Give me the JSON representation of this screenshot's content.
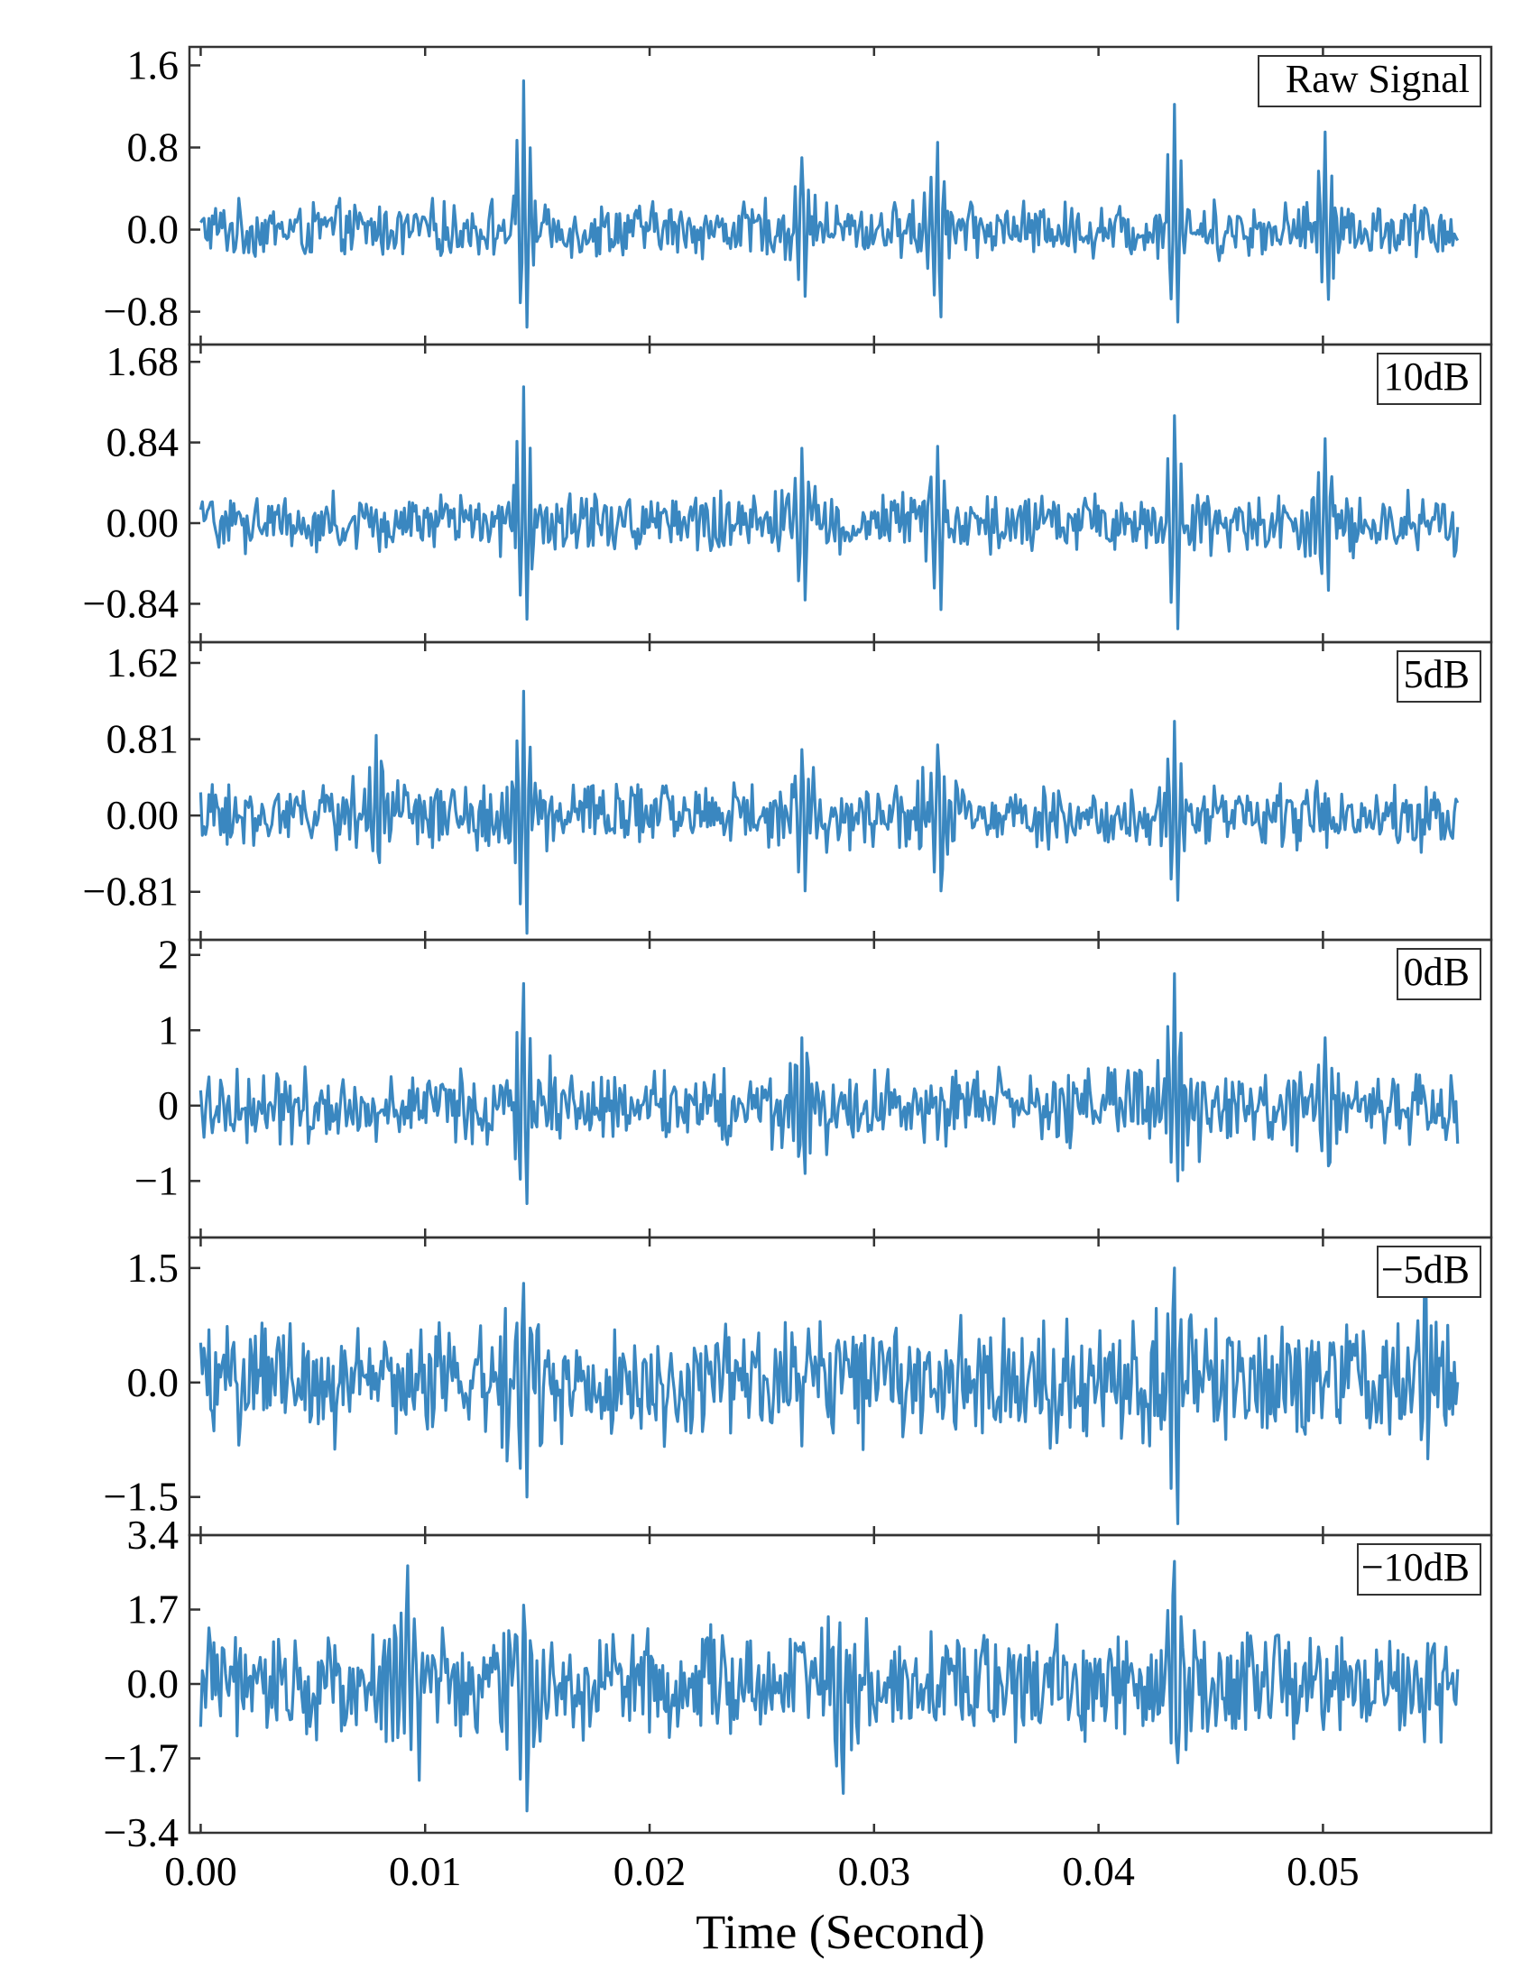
{
  "chart_data": {
    "type": "line",
    "layout": "stacked-panels",
    "shared_x": true,
    "xlabel": "Time (Second)",
    "xlim": [
      -0.0005,
      0.0575
    ],
    "xticks": [
      0.0,
      0.01,
      0.02,
      0.03,
      0.04,
      0.05
    ],
    "xtick_labels": [
      "0.00",
      "0.01",
      "0.02",
      "0.03",
      "0.04",
      "0.05"
    ],
    "signal_span": [
      0.0,
      0.056
    ],
    "series_color": "#3A87C0",
    "panels": [
      {
        "label": "Raw Signal",
        "ylim": [
          -1.12,
          1.78
        ],
        "yticks": [
          -0.8,
          0.0,
          0.8,
          1.6
        ],
        "ytick_labels": [
          "−0.8",
          "0.0",
          "0.8",
          "1.6"
        ],
        "bursts": [
          {
            "t": 0.0144,
            "amp": 1.45,
            "min": -0.95
          },
          {
            "t": 0.0434,
            "amp": 1.22,
            "min": -0.9
          },
          {
            "t": 0.0501,
            "amp": 0.95,
            "min": -0.68
          },
          {
            "t": 0.0328,
            "amp": 0.85,
            "min": -0.85
          },
          {
            "t": 0.0268,
            "amp": 0.7,
            "min": -0.65
          }
        ],
        "noise": 0.22
      },
      {
        "label": "10dB",
        "ylim": [
          -1.24,
          1.86
        ],
        "yticks": [
          -0.84,
          0.0,
          0.84,
          1.68
        ],
        "ytick_labels": [
          "−0.84",
          "0.00",
          "0.84",
          "1.68"
        ],
        "bursts": [
          {
            "t": 0.0144,
            "amp": 1.42,
            "min": -1.0
          },
          {
            "t": 0.0434,
            "amp": 1.12,
            "min": -1.1
          },
          {
            "t": 0.0501,
            "amp": 0.88,
            "min": -0.7
          },
          {
            "t": 0.0328,
            "amp": 0.8,
            "min": -0.9
          },
          {
            "t": 0.0268,
            "amp": 0.78,
            "min": -0.8
          }
        ],
        "noise": 0.25
      },
      {
        "label": "5dB",
        "ylim": [
          -1.32,
          1.84
        ],
        "yticks": [
          -0.81,
          0.0,
          0.81,
          1.62
        ],
        "ytick_labels": [
          "−0.81",
          "0.00",
          "0.81",
          "1.62"
        ],
        "bursts": [
          {
            "t": 0.0144,
            "amp": 1.32,
            "min": -1.25
          },
          {
            "t": 0.0434,
            "amp": 1.0,
            "min": -0.9
          },
          {
            "t": 0.0078,
            "amp": 0.85,
            "min": -0.5
          },
          {
            "t": 0.0328,
            "amp": 0.75,
            "min": -0.8
          },
          {
            "t": 0.0268,
            "amp": 0.7,
            "min": -0.8
          }
        ],
        "noise": 0.28
      },
      {
        "label": "0dB",
        "ylim": [
          -1.75,
          2.2
        ],
        "yticks": [
          -1,
          0,
          1,
          2
        ],
        "ytick_labels": [
          "−1",
          "0",
          "1",
          "2"
        ],
        "bursts": [
          {
            "t": 0.0434,
            "amp": 1.75,
            "min": -1.0
          },
          {
            "t": 0.0144,
            "amp": 1.62,
            "min": -1.3
          },
          {
            "t": 0.0268,
            "amp": 0.9,
            "min": -0.9
          },
          {
            "t": 0.0501,
            "amp": 0.9,
            "min": -0.8
          }
        ],
        "noise": 0.4
      },
      {
        "label": "−5dB",
        "ylim": [
          -2.0,
          1.9
        ],
        "yticks": [
          -1.5,
          0.0,
          1.5
        ],
        "ytick_labels": [
          "−1.5",
          "0.0",
          "1.5"
        ],
        "bursts": [
          {
            "t": 0.0434,
            "amp": 1.5,
            "min": -1.85
          },
          {
            "t": 0.0144,
            "amp": 1.3,
            "min": -1.5
          },
          {
            "t": 0.0545,
            "amp": 1.35,
            "min": -1.0
          }
        ],
        "noise": 0.62
      },
      {
        "label": "−10dB",
        "ylim": [
          -3.4,
          3.4
        ],
        "yticks": [
          -3.4,
          -1.7,
          0.0,
          1.7,
          3.4
        ],
        "ytick_labels": [
          "−3.4",
          "−1.7",
          "0.0",
          "1.7",
          "3.4"
        ],
        "bursts": [
          {
            "t": 0.0434,
            "amp": 2.8,
            "min": -1.8
          },
          {
            "t": 0.0092,
            "amp": 2.7,
            "min": -1.5
          },
          {
            "t": 0.0144,
            "amp": 1.8,
            "min": -2.9
          },
          {
            "t": 0.0285,
            "amp": 1.4,
            "min": -2.5
          }
        ],
        "noise": 1.0
      }
    ]
  }
}
